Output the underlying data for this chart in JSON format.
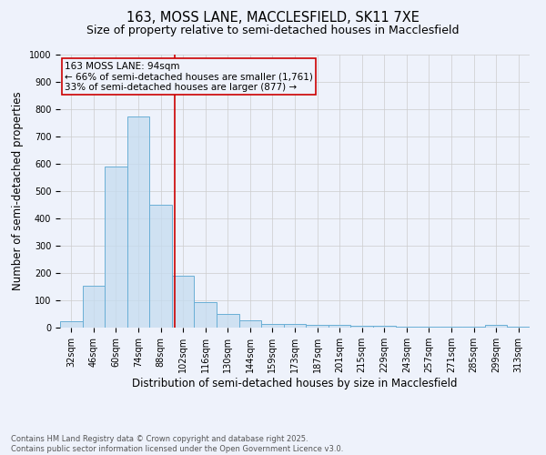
{
  "title_line1": "163, MOSS LANE, MACCLESFIELD, SK11 7XE",
  "title_line2": "Size of property relative to semi-detached houses in Macclesfield",
  "xlabel": "Distribution of semi-detached houses by size in Macclesfield",
  "ylabel": "Number of semi-detached properties",
  "categories": [
    "32sqm",
    "46sqm",
    "60sqm",
    "74sqm",
    "88sqm",
    "102sqm",
    "116sqm",
    "130sqm",
    "144sqm",
    "159sqm",
    "173sqm",
    "187sqm",
    "201sqm",
    "215sqm",
    "229sqm",
    "243sqm",
    "257sqm",
    "271sqm",
    "285sqm",
    "299sqm",
    "313sqm"
  ],
  "values": [
    25,
    155,
    590,
    775,
    450,
    190,
    95,
    50,
    28,
    12,
    15,
    10,
    10,
    8,
    8,
    5,
    3,
    5,
    3,
    10,
    5
  ],
  "bar_facecolor": "#c5dcf0",
  "bar_edgecolor": "#6aafd6",
  "annotation_text_line1": "163 MOSS LANE: 94sqm",
  "annotation_text_line2": "← 66% of semi-detached houses are smaller (1,761)",
  "annotation_text_line3": "33% of semi-detached houses are larger (877) →",
  "annotation_box_color": "#cc0000",
  "vline_color": "#cc0000",
  "vline_x": 4.63,
  "ylim": [
    0,
    1000
  ],
  "yticks": [
    0,
    100,
    200,
    300,
    400,
    500,
    600,
    700,
    800,
    900,
    1000
  ],
  "grid_color": "#cccccc",
  "bg_color": "#eef2fb",
  "footnote_line1": "Contains HM Land Registry data © Crown copyright and database right 2025.",
  "footnote_line2": "Contains public sector information licensed under the Open Government Licence v3.0.",
  "title_fontsize": 10.5,
  "subtitle_fontsize": 9,
  "axis_label_fontsize": 8.5,
  "tick_fontsize": 7,
  "annotation_fontsize": 7.5,
  "footnote_fontsize": 6
}
